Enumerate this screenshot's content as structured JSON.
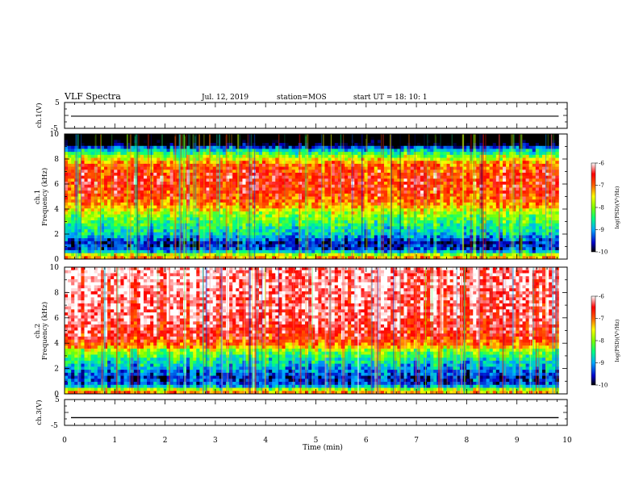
{
  "header": {
    "title": "VLF Spectra",
    "date": "Jul. 12, 2019",
    "station": "station=MOS",
    "start": "start UT =  18: 10: 1"
  },
  "chart_data": {
    "type": "heatmap",
    "x_axis": {
      "label": "Time (min)",
      "range": [
        0,
        10
      ],
      "ticks": [
        "0",
        "1",
        "2",
        "3",
        "4",
        "5",
        "6",
        "7",
        "8",
        "9",
        "10"
      ],
      "data_end_min": 9.83
    },
    "panels": [
      {
        "id": "ch1-waveform",
        "kind": "line",
        "ylabel": "ch.1(V)",
        "ylim": [
          -5,
          5
        ],
        "ytick_labels": [
          "5",
          "-5"
        ],
        "value": -0.3
      },
      {
        "id": "ch1-spectrogram",
        "kind": "heatmap",
        "ylabel_lines": [
          "ch.1",
          "Frequency (kHz)"
        ],
        "ylim": [
          0,
          10
        ],
        "ytick_labels": [
          "0",
          "2",
          "4",
          "6",
          "8",
          "10"
        ],
        "profile": [
          {
            "f": 0.2,
            "v": -7.2
          },
          {
            "f": 0.7,
            "v": -9.3
          },
          {
            "f": 1.3,
            "v": -9.6
          },
          {
            "f": 2.0,
            "v": -8.8
          },
          {
            "f": 2.8,
            "v": -8.4
          },
          {
            "f": 3.6,
            "v": -7.9
          },
          {
            "f": 4.5,
            "v": -7.0
          },
          {
            "f": 5.5,
            "v": -6.7
          },
          {
            "f": 6.5,
            "v": -6.6
          },
          {
            "f": 7.5,
            "v": -6.9
          },
          {
            "f": 8.2,
            "v": -7.9
          },
          {
            "f": 8.8,
            "v": -9.0
          },
          {
            "f": 9.2,
            "v": -10.2
          },
          {
            "f": 10.0,
            "v": -11.0
          }
        ]
      },
      {
        "id": "ch2-spectrogram",
        "kind": "heatmap",
        "ylabel_lines": [
          "ch.2",
          "Frequency (kHz)"
        ],
        "ylim": [
          0,
          10
        ],
        "ytick_labels": [
          "0",
          "2",
          "4",
          "6",
          "8",
          "10"
        ],
        "profile": [
          {
            "f": 0.2,
            "v": -7.2
          },
          {
            "f": 0.7,
            "v": -9.3
          },
          {
            "f": 1.3,
            "v": -9.5
          },
          {
            "f": 2.0,
            "v": -9.0
          },
          {
            "f": 2.8,
            "v": -8.5
          },
          {
            "f": 3.4,
            "v": -8.0
          },
          {
            "f": 3.8,
            "v": -7.1
          },
          {
            "f": 4.5,
            "v": -6.6
          },
          {
            "f": 6.0,
            "v": -6.3
          },
          {
            "f": 8.0,
            "v": -6.2
          },
          {
            "f": 10.0,
            "v": -6.1
          }
        ]
      },
      {
        "id": "ch3-waveform",
        "kind": "line",
        "ylabel": "ch.3(V)",
        "ylim": [
          -5,
          5
        ],
        "ytick_labels": [
          "5",
          "-5"
        ],
        "value": -2.0
      }
    ],
    "colorbar": {
      "label": "log(PSD)(V²/Hz)",
      "range": [
        -10,
        -6
      ],
      "tick_labels": [
        "-6",
        "-7",
        "-8",
        "-9",
        "-10"
      ],
      "stops": [
        {
          "v": -10,
          "color": "#000000"
        },
        {
          "v": -9.6,
          "color": "#0000c8"
        },
        {
          "v": -9.0,
          "color": "#00aaff"
        },
        {
          "v": -8.5,
          "color": "#00ff80"
        },
        {
          "v": -8.0,
          "color": "#80ff00"
        },
        {
          "v": -7.5,
          "color": "#ffff00"
        },
        {
          "v": -7.0,
          "color": "#ff6000"
        },
        {
          "v": -6.5,
          "color": "#ff0000"
        },
        {
          "v": -6.0,
          "color": "#ffffff"
        }
      ]
    }
  }
}
